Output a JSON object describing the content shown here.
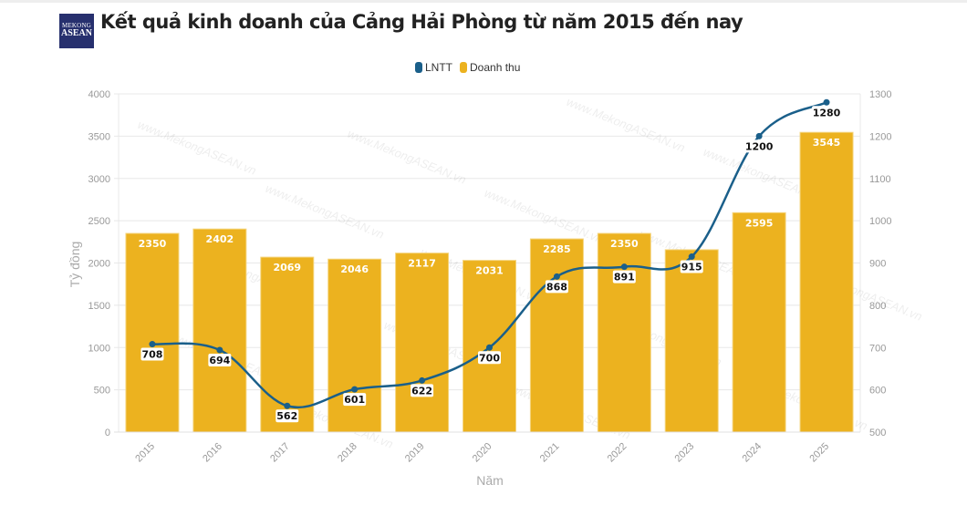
{
  "header": {
    "title": "Kết quả kinh doanh của Cảng Hải Phòng từ năm 2015 đến nay",
    "logo_text": [
      "MEKONG",
      "ASEAN"
    ]
  },
  "watermark": "www.MekongASEAN.vn",
  "chart_data": {
    "type": "bar+line",
    "categories": [
      "2015",
      "2016",
      "2017",
      "2018",
      "2019",
      "2020",
      "2021",
      "2022",
      "2023",
      "2024",
      "2025"
    ],
    "series": [
      {
        "name": "LNTT",
        "type": "line",
        "axis": "right",
        "color": "#1a5f8a",
        "values": [
          708,
          694,
          562,
          601,
          622,
          700,
          868,
          891,
          915,
          1200,
          1280
        ]
      },
      {
        "name": "Doanh thu",
        "type": "bar",
        "axis": "left",
        "color": "#ecb21f",
        "values": [
          2350,
          2402,
          2069,
          2046,
          2117,
          2031,
          2285,
          2350,
          2157,
          2595,
          3545
        ]
      }
    ],
    "bar_labels": [
      "2350",
      "2402",
      "2069",
      "2046",
      "2117",
      "2031",
      "2285",
      "2350",
      "",
      "2595",
      "3545"
    ],
    "xlabel": "Năm",
    "ylabel": "Tỷ đồng",
    "ylim": [
      0,
      4000
    ],
    "yticks": [
      "0",
      "500",
      "1000",
      "1500",
      "2000",
      "2500",
      "3000",
      "3500",
      "4000"
    ],
    "y2lim": [
      500,
      1300
    ],
    "y2ticks": [
      "500",
      "600",
      "700",
      "800",
      "900",
      "1000",
      "1100",
      "1200",
      "1300"
    ],
    "grid": true,
    "legend": "top-center"
  }
}
